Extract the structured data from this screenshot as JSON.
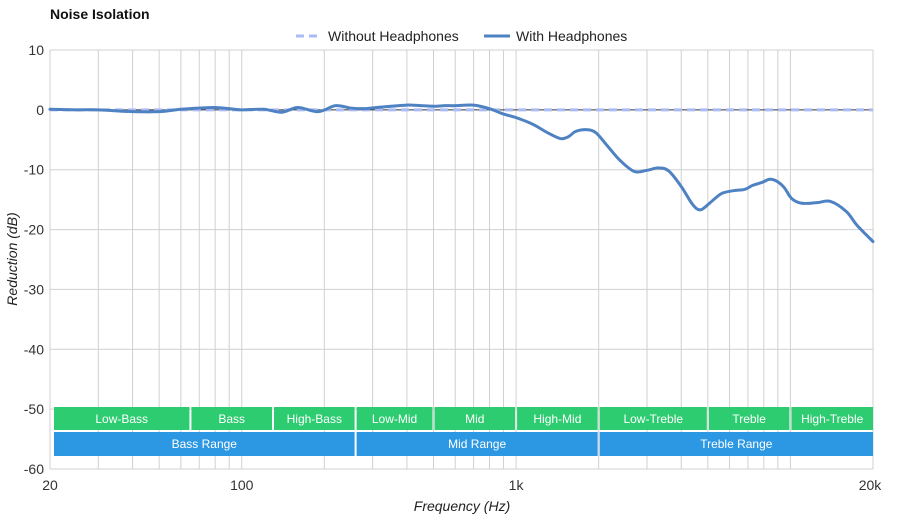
{
  "chart_data": {
    "type": "line",
    "title": "Noise Isolation",
    "xlabel": "Frequency (Hz)",
    "ylabel": "Reduction (dB)",
    "x_scale": "log",
    "xlim": [
      20,
      20000
    ],
    "ylim": [
      -60,
      10
    ],
    "x_ticks": [
      {
        "value": 20,
        "label": "20"
      },
      {
        "value": 100,
        "label": "100"
      },
      {
        "value": 1000,
        "label": "1k"
      },
      {
        "value": 20000,
        "label": "20k"
      }
    ],
    "y_ticks": [
      {
        "value": 10,
        "label": "10"
      },
      {
        "value": 0,
        "label": "0"
      },
      {
        "value": -10,
        "label": "-10"
      },
      {
        "value": -20,
        "label": "-20"
      },
      {
        "value": -30,
        "label": "-30"
      },
      {
        "value": -40,
        "label": "-40"
      },
      {
        "value": -50,
        "label": "-50"
      },
      {
        "value": -60,
        "label": "-60"
      }
    ],
    "x_gridlines": [
      20,
      30,
      40,
      50,
      60,
      70,
      80,
      90,
      100,
      200,
      300,
      400,
      500,
      600,
      700,
      800,
      900,
      1000,
      2000,
      3000,
      4000,
      5000,
      6000,
      7000,
      8000,
      9000,
      10000,
      20000
    ],
    "grid": true,
    "legend_position": "top-center",
    "series": [
      {
        "name": "Without Headphones",
        "style": "dashed",
        "color": "#aabbf5",
        "x": [
          20,
          20000
        ],
        "y": [
          0,
          0
        ]
      },
      {
        "name": "With Headphones",
        "style": "solid",
        "color": "#4f82c2",
        "x": [
          20,
          25,
          30,
          40,
          50,
          60,
          70,
          80,
          90,
          100,
          120,
          140,
          160,
          190,
          220,
          250,
          280,
          310,
          350,
          400,
          450,
          500,
          550,
          600,
          700,
          800,
          900,
          1000,
          1150,
          1300,
          1450,
          1550,
          1650,
          1800,
          1950,
          2150,
          2400,
          2700,
          3000,
          3300,
          3600,
          4000,
          4400,
          4700,
          5100,
          5600,
          6200,
          6800,
          7300,
          7900,
          8400,
          8900,
          9500,
          10100,
          11000,
          12500,
          14000,
          16000,
          17500,
          20000
        ],
        "y": [
          0.1,
          0.0,
          0.0,
          -0.3,
          -0.3,
          0.1,
          0.3,
          0.4,
          0.2,
          0.0,
          0.1,
          -0.4,
          0.4,
          -0.3,
          0.7,
          0.3,
          0.2,
          0.4,
          0.6,
          0.8,
          0.7,
          0.6,
          0.7,
          0.7,
          0.8,
          0.2,
          -0.7,
          -1.3,
          -2.4,
          -3.8,
          -4.8,
          -4.5,
          -3.6,
          -3.3,
          -3.8,
          -6.0,
          -8.5,
          -10.3,
          -10.1,
          -9.7,
          -10.2,
          -12.8,
          -15.8,
          -16.7,
          -15.5,
          -14.0,
          -13.5,
          -13.3,
          -12.6,
          -12.1,
          -11.6,
          -11.9,
          -13.0,
          -14.8,
          -15.6,
          -15.5,
          -15.3,
          -17.0,
          -19.3,
          -22.0
        ]
      }
    ],
    "bands": [
      {
        "label": "Low-Bass",
        "from": 20,
        "to": 65,
        "color": "#2ecc71"
      },
      {
        "label": "Bass",
        "from": 65,
        "to": 130,
        "color": "#2ecc71"
      },
      {
        "label": "High-Bass",
        "from": 130,
        "to": 260,
        "color": "#2ecc71"
      },
      {
        "label": "Low-Mid",
        "from": 260,
        "to": 500,
        "color": "#2ecc71"
      },
      {
        "label": "Mid",
        "from": 500,
        "to": 1000,
        "color": "#2ecc71"
      },
      {
        "label": "High-Mid",
        "from": 1000,
        "to": 2000,
        "color": "#2ecc71"
      },
      {
        "label": "Low-Treble",
        "from": 2000,
        "to": 5000,
        "color": "#2ecc71"
      },
      {
        "label": "Treble",
        "from": 5000,
        "to": 10000,
        "color": "#2ecc71"
      },
      {
        "label": "High-Treble",
        "from": 10000,
        "to": 20000,
        "color": "#2ecc71"
      }
    ],
    "ranges": [
      {
        "label": "Bass Range",
        "from": 20,
        "to": 260,
        "color": "#2c97e2"
      },
      {
        "label": "Mid Range",
        "from": 260,
        "to": 2000,
        "color": "#2c97e2"
      },
      {
        "label": "Treble Range",
        "from": 2000,
        "to": 20000,
        "color": "#2c97e2"
      }
    ]
  }
}
